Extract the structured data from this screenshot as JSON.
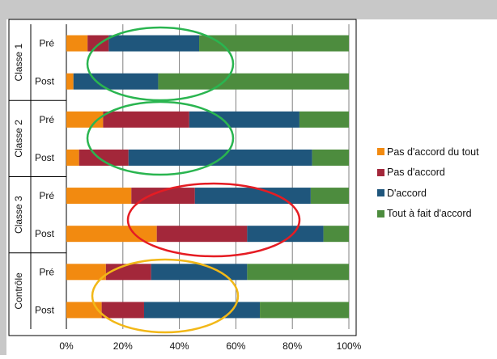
{
  "chart_data": {
    "type": "bar",
    "orientation": "horizontal",
    "stacked": "percent",
    "groups": [
      {
        "name": "Classe 1",
        "rows": [
          {
            "label": "Pré",
            "values": [
              7.5,
              7.5,
              32,
              53
            ]
          },
          {
            "label": "Post",
            "values": [
              2.5,
              0,
              30,
              67.5
            ]
          }
        ]
      },
      {
        "name": "Classe 2",
        "rows": [
          {
            "label": "Pré",
            "values": [
              13,
              30.5,
              39,
              17.5
            ]
          },
          {
            "label": "Post",
            "values": [
              4.5,
              17.5,
              65,
              13
            ]
          }
        ]
      },
      {
        "name": "Classe 3",
        "rows": [
          {
            "label": "Pré",
            "values": [
              23,
              22.5,
              41,
              13.5
            ]
          },
          {
            "label": "Post",
            "values": [
              32,
              32,
              27,
              9
            ]
          }
        ]
      },
      {
        "name": "Contrôle",
        "rows": [
          {
            "label": "Pré",
            "values": [
              14,
              16,
              34,
              36
            ]
          },
          {
            "label": "Post",
            "values": [
              12.5,
              15,
              41,
              31.5
            ]
          }
        ]
      }
    ],
    "series": [
      {
        "name": "Pas d'accord du tout",
        "color": "#f28a10"
      },
      {
        "name": "Pas d'accord",
        "color": "#a3273a"
      },
      {
        "name": "D'accord",
        "color": "#1f567c"
      },
      {
        "name": "Tout à fait d'accord",
        "color": "#4d8c3e"
      }
    ],
    "xaxis": {
      "ticks": [
        "0%",
        "20%",
        "40%",
        "60%",
        "80%",
        "100%"
      ],
      "xlim": [
        0,
        100
      ]
    },
    "grid": true,
    "legend_position": "right",
    "annotations": [
      {
        "type": "ellipse",
        "color": "#2ab550",
        "target": "Classe 1"
      },
      {
        "type": "ellipse",
        "color": "#2ab550",
        "target": "Classe 2"
      },
      {
        "type": "ellipse",
        "color": "#e51c23",
        "target": "Classe 3"
      },
      {
        "type": "ellipse",
        "color": "#f2b818",
        "target": "Contrôle"
      }
    ]
  },
  "colors": {
    "background_top": "#c8c8c8",
    "frame": "#000000",
    "grid": "#808080"
  }
}
